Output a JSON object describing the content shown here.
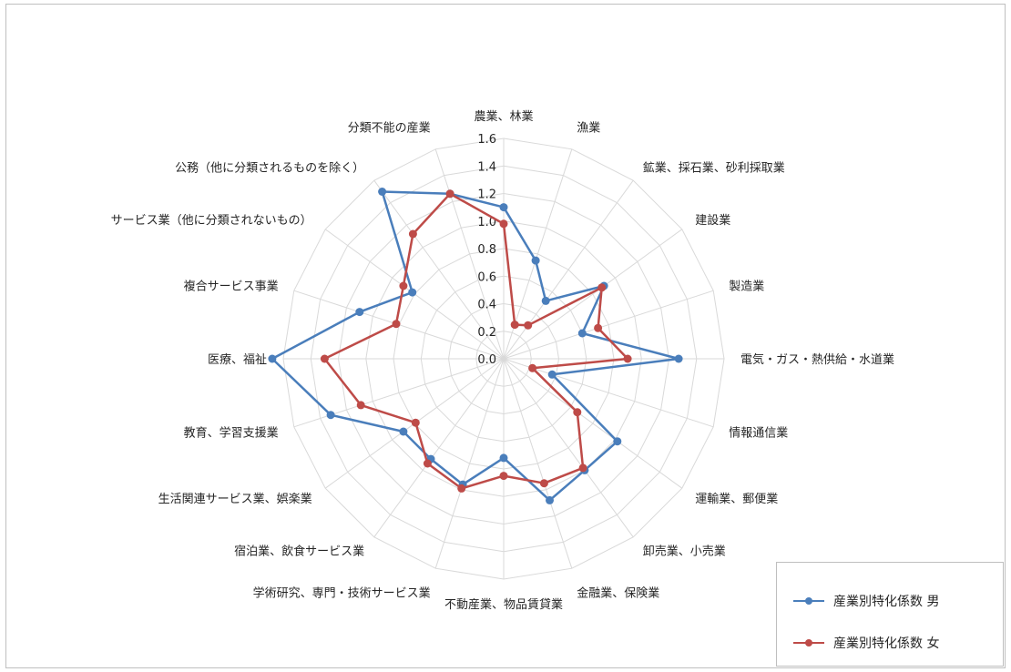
{
  "chart_data": {
    "type": "radar",
    "categories": [
      "農業、林業",
      "漁業",
      "鉱業、採石業、砂利採取業",
      "建設業",
      "製造業",
      "電気・ガス・熱供給・水道業",
      "情報通信業",
      "運輸業、郵便業",
      "卸売業、小売業",
      "金融業、保険業",
      "不動産業、物品賃貸業",
      "学術研究、専門・技術サービス業",
      "宿泊業、飲食サービス業",
      "生活関連サービス業、娯楽業",
      "教育、学習支援業",
      "医療、福祉",
      "複合サービス事業",
      "サービス業（他に分類されないもの）",
      "公務（他に分類されるものを除く）",
      "分類不能の産業"
    ],
    "series": [
      {
        "name": "産業別特化係数 男",
        "color": "#4a7ebb",
        "values": [
          1.1,
          0.75,
          0.52,
          0.9,
          0.6,
          1.27,
          0.37,
          1.02,
          1.0,
          1.08,
          0.72,
          0.96,
          0.9,
          0.9,
          1.32,
          1.68,
          1.1,
          0.82,
          1.5,
          1.26
        ]
      },
      {
        "name": "産業別特化係数 女",
        "color": "#be4b48",
        "values": [
          0.98,
          0.26,
          0.3,
          0.88,
          0.72,
          0.9,
          0.22,
          0.66,
          0.98,
          0.95,
          0.85,
          0.99,
          0.94,
          0.79,
          1.09,
          1.3,
          0.82,
          0.9,
          1.12,
          1.26
        ]
      }
    ],
    "rlim": [
      0,
      1.6
    ],
    "ticks": [
      "0.0",
      "0.2",
      "0.4",
      "0.6",
      "0.8",
      "1.0",
      "1.2",
      "1.4",
      "1.6"
    ],
    "legend": "bottom-right",
    "grid": true
  }
}
